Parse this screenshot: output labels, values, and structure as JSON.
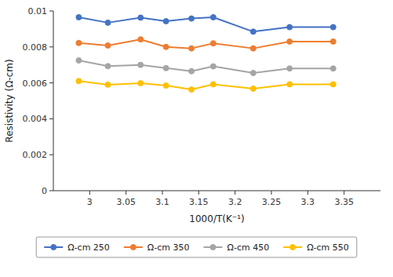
{
  "chart_data": {
    "type": "line",
    "x_label": "1000/T(K⁻¹)",
    "y_label": "Resistivity (Ω-cm)",
    "x": [
      2.985,
      3.025,
      3.07,
      3.105,
      3.14,
      3.17,
      3.225,
      3.275,
      3.335
    ],
    "series": [
      {
        "name": "Ω-cm 250",
        "color": "#4472C4",
        "values": [
          0.00965,
          0.00935,
          0.00963,
          0.00943,
          0.00958,
          0.00965,
          0.00885,
          0.0091,
          0.0091
        ]
      },
      {
        "name": "Ω-cm 350",
        "color": "#ED7D31",
        "values": [
          0.00822,
          0.00808,
          0.00842,
          0.008,
          0.00792,
          0.0082,
          0.00792,
          0.0083,
          0.0083
        ]
      },
      {
        "name": "Ω-cm 450",
        "color": "#A5A5A5",
        "values": [
          0.00725,
          0.00693,
          0.007,
          0.00682,
          0.00665,
          0.00692,
          0.00655,
          0.0068,
          0.0068
        ]
      },
      {
        "name": "Ω-cm 550",
        "color": "#FFC000",
        "values": [
          0.0061,
          0.0059,
          0.00598,
          0.00585,
          0.00563,
          0.00592,
          0.00568,
          0.00592,
          0.00592
        ]
      }
    ],
    "xlim": [
      2.95,
      3.4
    ],
    "ylim": [
      0,
      0.01
    ],
    "xticks": [
      3,
      3.05,
      3.1,
      3.15,
      3.2,
      3.25,
      3.3,
      3.35
    ],
    "yticks": [
      0,
      0.002,
      0.004,
      0.006,
      0.008,
      0.01
    ],
    "marker": "circle",
    "legend": "bottom",
    "grid": false
  }
}
